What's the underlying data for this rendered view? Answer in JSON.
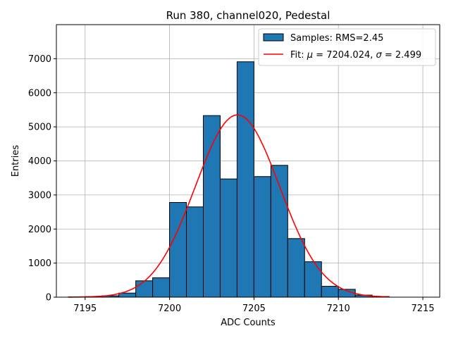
{
  "chart_data": {
    "type": "bar",
    "title": "Run 380, channel020, Pedestal",
    "xlabel": "ADC Counts",
    "ylabel": "Entries",
    "xlim": [
      7193.3,
      7216.0
    ],
    "ylim": [
      0,
      8000
    ],
    "xticks": [
      7195,
      7200,
      7205,
      7210,
      7215
    ],
    "yticks": [
      0,
      1000,
      2000,
      3000,
      4000,
      5000,
      6000,
      7000
    ],
    "grid": true,
    "legend_position": "top-right",
    "histogram": {
      "name": "Samples: RMS=2.45",
      "color": "#1f77b4",
      "bin_edges": [
        7194,
        7195,
        7196,
        7197,
        7198,
        7199,
        7200,
        7201,
        7202,
        7203,
        7204,
        7205,
        7206,
        7207,
        7208,
        7209,
        7210,
        7211,
        7212,
        7213
      ],
      "counts": [
        5,
        15,
        40,
        120,
        480,
        570,
        2780,
        2650,
        5330,
        3470,
        6910,
        3540,
        3870,
        1720,
        1040,
        320,
        230,
        60,
        20
      ]
    },
    "fit": {
      "name_prefix": "Fit: ",
      "mu_symbol": "μ",
      "mu_text": " = 7204.024, ",
      "sigma_symbol": "σ",
      "sigma_text": " = 2.499",
      "color": "#ff0000",
      "mu": 7204.024,
      "sigma": 2.499,
      "amplitude": 5350,
      "x_range": [
        7194,
        7213
      ]
    },
    "xtick_labels": [
      "7195",
      "7200",
      "7205",
      "7210",
      "7215"
    ],
    "ytick_labels": [
      "0",
      "1000",
      "2000",
      "3000",
      "4000",
      "5000",
      "6000",
      "7000"
    ]
  }
}
